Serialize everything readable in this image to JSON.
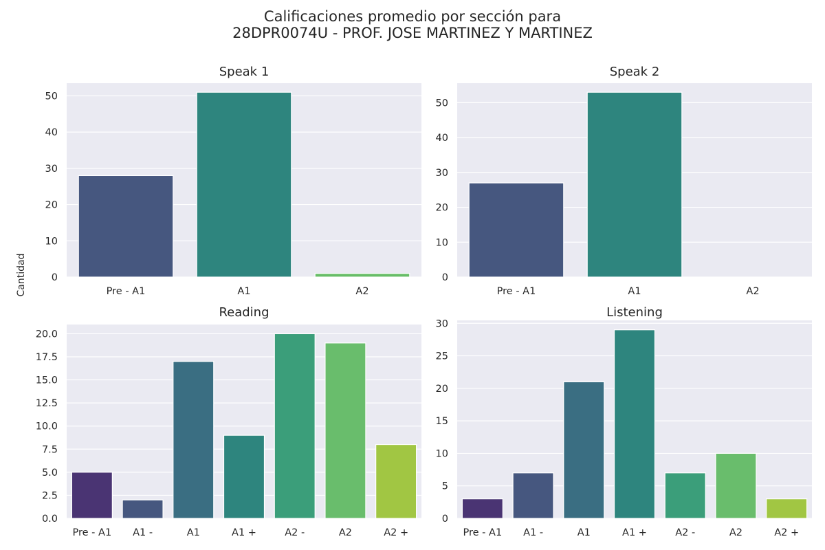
{
  "figure": {
    "title_line1": "Calificaciones promedio por sección para",
    "title_line2": "28DPR0074U - PROF. JOSE MARTINEZ Y MARTINEZ",
    "ylabel": "Cantidad",
    "colors": {
      "background": "#eaeaf2",
      "grid": "#ffffff",
      "viridis_7": [
        "#46327e",
        "#433e85",
        "#3b6e80",
        "#2e8680",
        "#3a9e7a",
        "#6bbd6c",
        "#a0c642"
      ],
      "viridis_3": [
        "#46577f",
        "#2e857e",
        "#67bd67"
      ]
    }
  },
  "chart_data": [
    {
      "type": "bar",
      "title": "Speak 1",
      "categories": [
        "Pre - A1",
        "A1",
        "A2"
      ],
      "values": [
        28,
        51,
        1
      ],
      "ylim": [
        0,
        53.5
      ],
      "yticks": [
        0,
        10,
        20,
        30,
        40,
        50
      ],
      "ytick_labels": [
        "0",
        "10",
        "20",
        "30",
        "40",
        "50"
      ],
      "colors": [
        "#46577f",
        "#2e857e",
        "#67bd67"
      ],
      "grid": true
    },
    {
      "type": "bar",
      "title": "Speak 2",
      "categories": [
        "Pre - A1",
        "A1",
        "A2"
      ],
      "values": [
        27,
        53,
        0
      ],
      "ylim": [
        0,
        55.6
      ],
      "yticks": [
        0,
        10,
        20,
        30,
        40,
        50
      ],
      "ytick_labels": [
        "0",
        "10",
        "20",
        "30",
        "40",
        "50"
      ],
      "colors": [
        "#46577f",
        "#2e857e",
        "#67bd67"
      ],
      "grid": true
    },
    {
      "type": "bar",
      "title": "Reading",
      "categories": [
        "Pre - A1",
        "A1 -",
        "A1",
        "A1 +",
        "A2 -",
        "A2",
        "A2 +"
      ],
      "values": [
        5,
        2,
        17,
        9,
        20,
        19,
        8
      ],
      "ylim": [
        0,
        21
      ],
      "yticks": [
        0,
        2.5,
        5,
        7.5,
        10,
        12.5,
        15,
        17.5,
        20
      ],
      "ytick_labels": [
        "0.0",
        "2.5",
        "5.0",
        "7.5",
        "10.0",
        "12.5",
        "15.0",
        "17.5",
        "20.0"
      ],
      "colors": [
        "#4a3473",
        "#46577f",
        "#3a6e82",
        "#2e857e",
        "#3b9e7a",
        "#69bd6c",
        "#a1c643"
      ],
      "grid": true
    },
    {
      "type": "bar",
      "title": "Listening",
      "categories": [
        "Pre - A1",
        "A1 -",
        "A1",
        "A1 +",
        "A2 -",
        "A2",
        "A2 +"
      ],
      "values": [
        3,
        7,
        21,
        29,
        7,
        10,
        3
      ],
      "ylim": [
        0,
        30.45
      ],
      "yticks": [
        0,
        5,
        10,
        15,
        20,
        25,
        30
      ],
      "ytick_labels": [
        "0",
        "5",
        "10",
        "15",
        "20",
        "25",
        "30"
      ],
      "colors": [
        "#4a3473",
        "#46577f",
        "#3a6e82",
        "#2e857e",
        "#3b9e7a",
        "#69bd6c",
        "#a1c643"
      ],
      "grid": true
    }
  ]
}
